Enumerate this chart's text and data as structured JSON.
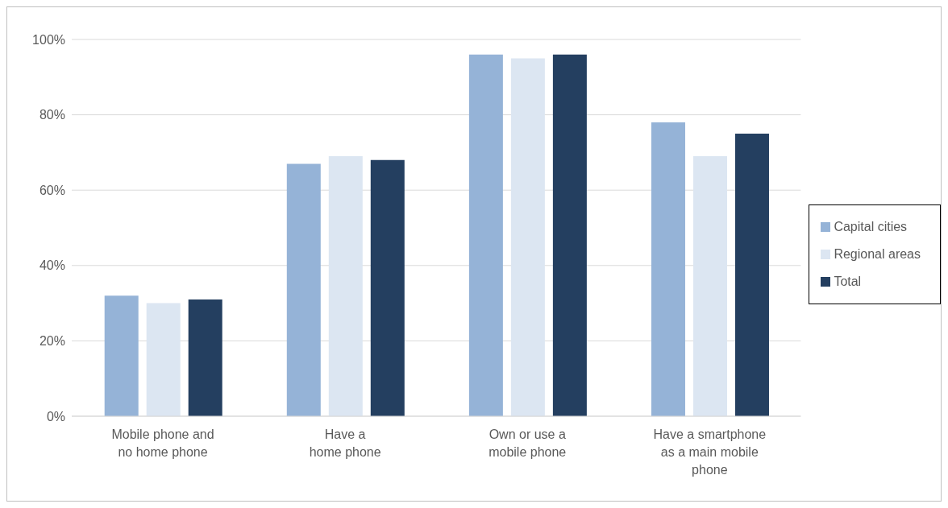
{
  "chart_data": {
    "type": "bar",
    "categories": [
      "Mobile phone and\nno home phone",
      "Have a\nhome phone",
      "Own or use a\nmobile phone",
      "Have a smartphone\nas a main mobile\nphone"
    ],
    "series": [
      {
        "name": "Capital cities",
        "color": "#95b3d7",
        "values": [
          32,
          67,
          96,
          78
        ]
      },
      {
        "name": "Regional areas",
        "color": "#dce6f2",
        "values": [
          30,
          69,
          95,
          69
        ]
      },
      {
        "name": "Total",
        "color": "#243f60",
        "values": [
          31,
          68,
          96,
          75
        ]
      }
    ],
    "ylim": [
      0,
      100
    ],
    "yticks": [
      {
        "value": 0,
        "label": "0%"
      },
      {
        "value": 20,
        "label": "20%"
      },
      {
        "value": 40,
        "label": "40%"
      },
      {
        "value": 60,
        "label": "60%"
      },
      {
        "value": 80,
        "label": "80%"
      },
      {
        "value": 100,
        "label": "100%"
      }
    ],
    "grid": "y",
    "legend": "right"
  }
}
